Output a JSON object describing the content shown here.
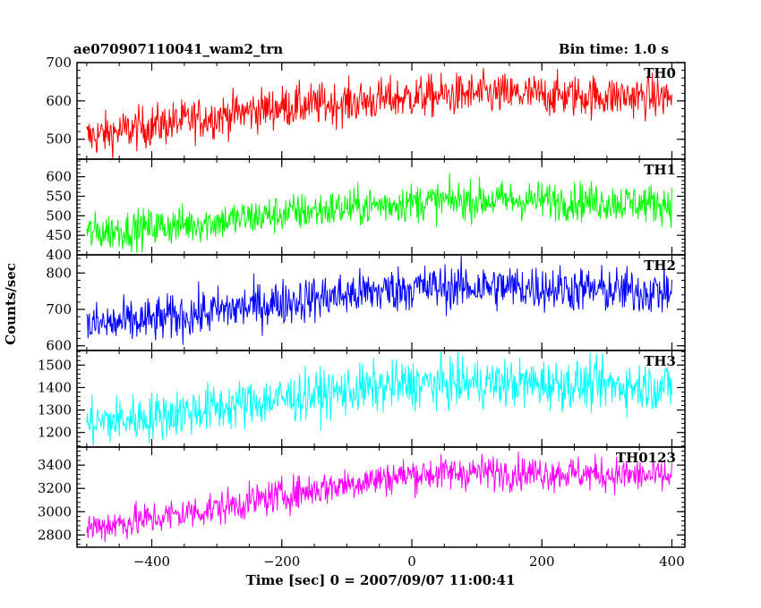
{
  "header": {
    "left_title": "ae070907110041_wam2_trn",
    "right_title": "Bin time: 1.0 s"
  },
  "chart_data": {
    "type": "line",
    "title": "ae070907110041_wam2_trn",
    "subtitle": "Bin time: 1.0 s",
    "xlabel": "Time [sec] 0 = 2007/09/07 11:00:41",
    "ylabel": "Counts/sec",
    "xlim": [
      -515,
      420
    ],
    "x_ticks": [
      -400,
      -200,
      0,
      200,
      400
    ],
    "x_tick_labels": [
      "−400",
      "−200",
      "0",
      "200",
      "400"
    ],
    "x_data_range": [
      -500,
      400
    ],
    "grid": false,
    "panels": [
      {
        "name": "TH0",
        "color": "#ff0000",
        "ylim": [
          448,
          700
        ],
        "y_ticks": [
          500,
          600,
          700
        ],
        "trend": [
          [
            -500,
            505
          ],
          [
            -400,
            535
          ],
          [
            -300,
            560
          ],
          [
            -200,
            585
          ],
          [
            -100,
            595
          ],
          [
            0,
            610
          ],
          [
            100,
            618
          ],
          [
            200,
            615
          ],
          [
            300,
            612
          ],
          [
            400,
            610
          ]
        ],
        "noise": 28
      },
      {
        "name": "TH1",
        "color": "#00ff00",
        "ylim": [
          400,
          645
        ],
        "y_ticks": [
          400,
          450,
          500,
          550,
          600
        ],
        "trend": [
          [
            -500,
            455
          ],
          [
            -400,
            470
          ],
          [
            -300,
            485
          ],
          [
            -200,
            505
          ],
          [
            -100,
            520
          ],
          [
            0,
            535
          ],
          [
            100,
            540
          ],
          [
            200,
            540
          ],
          [
            300,
            535
          ],
          [
            400,
            530
          ]
        ],
        "noise": 25
      },
      {
        "name": "TH2",
        "color": "#0000ff",
        "ylim": [
          587,
          850
        ],
        "y_ticks": [
          600,
          700,
          800
        ],
        "trend": [
          [
            -500,
            655
          ],
          [
            -400,
            670
          ],
          [
            -300,
            695
          ],
          [
            -200,
            720
          ],
          [
            -100,
            740
          ],
          [
            0,
            760
          ],
          [
            100,
            762
          ],
          [
            200,
            760
          ],
          [
            300,
            752
          ],
          [
            400,
            748
          ]
        ],
        "noise": 32
      },
      {
        "name": "TH3",
        "color": "#00ffff",
        "ylim": [
          1135,
          1565
        ],
        "y_ticks": [
          1200,
          1300,
          1400,
          1500
        ],
        "trend": [
          [
            -500,
            1240
          ],
          [
            -400,
            1270
          ],
          [
            -300,
            1310
          ],
          [
            -200,
            1350
          ],
          [
            -100,
            1385
          ],
          [
            0,
            1415
          ],
          [
            100,
            1420
          ],
          [
            200,
            1418
          ],
          [
            300,
            1410
          ],
          [
            400,
            1405
          ]
        ],
        "noise": 55
      },
      {
        "name": "TH0123",
        "color": "#ff00ff",
        "ylim": [
          2695,
          3555
        ],
        "y_ticks": [
          2800,
          3000,
          3200,
          3400
        ],
        "trend": [
          [
            -500,
            2860
          ],
          [
            -400,
            2940
          ],
          [
            -300,
            3030
          ],
          [
            -200,
            3140
          ],
          [
            -100,
            3240
          ],
          [
            0,
            3320
          ],
          [
            100,
            3340
          ],
          [
            200,
            3335
          ],
          [
            300,
            3320
          ],
          [
            400,
            3300
          ]
        ],
        "noise": 75
      }
    ]
  }
}
